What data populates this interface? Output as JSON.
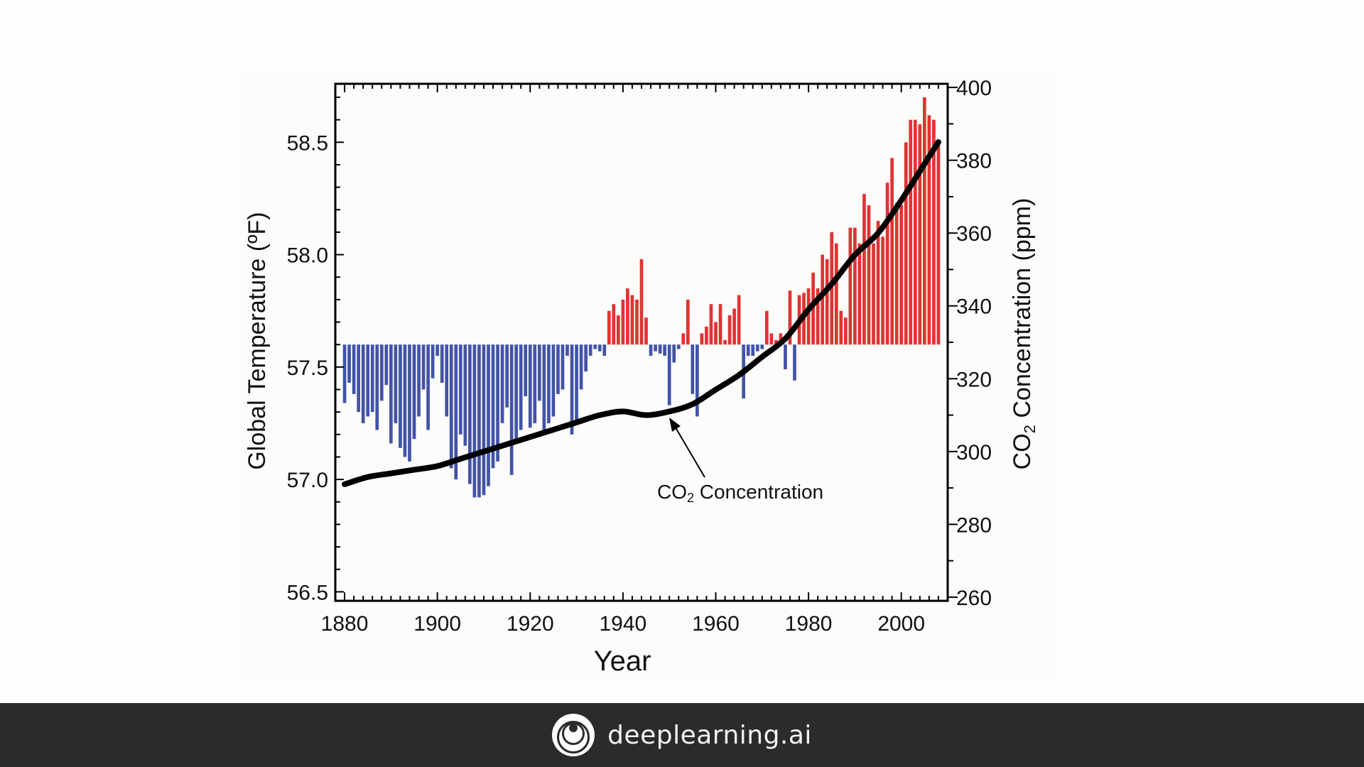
{
  "footer": {
    "brand": "deeplearning.ai",
    "logo_icon": "deeplearning-logo-icon"
  },
  "chart_data": {
    "type": "bar",
    "xlabel": "Year",
    "ylabel_left": "Global Temperature (ºF)",
    "ylabel_right_main": "CO",
    "ylabel_right_sub": "2",
    "ylabel_right_rest": " Concentration (ppm)",
    "annotation_main": "CO",
    "annotation_sub": "2",
    "annotation_rest": " Concentration",
    "baseline": 57.6,
    "x_range": [
      1878,
      2010
    ],
    "y_left_range": [
      56.46,
      58.76
    ],
    "y_right_range": [
      259,
      401
    ],
    "x_ticks": [
      1880,
      1900,
      1920,
      1940,
      1960,
      1980,
      2000
    ],
    "y_left_ticks": [
      "56.5",
      "57.0",
      "57.5",
      "58.0",
      "58.5"
    ],
    "y_right_ticks": [
      260,
      280,
      300,
      320,
      340,
      360,
      380,
      400
    ],
    "colors": {
      "above": "#e03333",
      "below": "#4353a6",
      "co2_line": "#000000"
    },
    "temperature_series": {
      "name": "Global Temperature",
      "years": [
        1880,
        1881,
        1882,
        1883,
        1884,
        1885,
        1886,
        1887,
        1888,
        1889,
        1890,
        1891,
        1892,
        1893,
        1894,
        1895,
        1896,
        1897,
        1898,
        1899,
        1900,
        1901,
        1902,
        1903,
        1904,
        1905,
        1906,
        1907,
        1908,
        1909,
        1910,
        1911,
        1912,
        1913,
        1914,
        1915,
        1916,
        1917,
        1918,
        1919,
        1920,
        1921,
        1922,
        1923,
        1924,
        1925,
        1926,
        1927,
        1928,
        1929,
        1930,
        1931,
        1932,
        1933,
        1934,
        1935,
        1936,
        1937,
        1938,
        1939,
        1940,
        1941,
        1942,
        1943,
        1944,
        1945,
        1946,
        1947,
        1948,
        1949,
        1950,
        1951,
        1952,
        1953,
        1954,
        1955,
        1956,
        1957,
        1958,
        1959,
        1960,
        1961,
        1962,
        1963,
        1964,
        1965,
        1966,
        1967,
        1968,
        1969,
        1970,
        1971,
        1972,
        1973,
        1974,
        1975,
        1976,
        1977,
        1978,
        1979,
        1980,
        1981,
        1982,
        1983,
        1984,
        1985,
        1986,
        1987,
        1988,
        1989,
        1990,
        1991,
        1992,
        1993,
        1994,
        1995,
        1996,
        1997,
        1998,
        1999,
        2000,
        2001,
        2002,
        2003,
        2004,
        2005,
        2006,
        2007,
        2008
      ],
      "values": [
        57.34,
        57.43,
        57.38,
        57.3,
        57.25,
        57.28,
        57.3,
        57.22,
        57.35,
        57.42,
        57.16,
        57.25,
        57.14,
        57.1,
        57.08,
        57.18,
        57.28,
        57.4,
        57.22,
        57.45,
        57.55,
        57.43,
        57.28,
        57.05,
        57.0,
        57.2,
        57.15,
        56.98,
        56.92,
        56.92,
        56.93,
        56.97,
        57.05,
        57.08,
        57.25,
        57.32,
        57.02,
        57.18,
        57.22,
        57.37,
        57.23,
        57.25,
        57.35,
        57.22,
        57.25,
        57.28,
        57.38,
        57.4,
        57.55,
        57.2,
        57.25,
        57.4,
        57.48,
        57.55,
        57.58,
        57.57,
        57.55,
        57.75,
        57.78,
        57.73,
        57.8,
        57.85,
        57.82,
        57.8,
        57.98,
        57.72,
        57.55,
        57.57,
        57.56,
        57.55,
        57.33,
        57.52,
        57.58,
        57.65,
        57.8,
        57.38,
        57.28,
        57.65,
        57.68,
        57.78,
        57.7,
        57.78,
        57.62,
        57.73,
        57.76,
        57.82,
        57.36,
        57.55,
        57.55,
        57.57,
        57.58,
        57.75,
        57.65,
        57.62,
        57.65,
        57.49,
        57.84,
        57.44,
        57.82,
        57.83,
        57.85,
        57.92,
        57.85,
        58.0,
        57.98,
        58.1,
        58.05,
        57.75,
        57.72,
        58.12,
        58.12,
        58.05,
        58.27,
        58.22,
        58.05,
        58.15,
        58.08,
        58.32,
        58.43,
        58.23,
        58.22,
        58.5,
        58.6,
        58.6,
        58.58,
        58.7,
        58.62,
        58.6,
        58.5
      ]
    },
    "co2_series": {
      "name": "CO2 Concentration",
      "points": [
        [
          1880,
          291
        ],
        [
          1885,
          293
        ],
        [
          1890,
          294
        ],
        [
          1895,
          295
        ],
        [
          1900,
          296
        ],
        [
          1905,
          298
        ],
        [
          1910,
          300
        ],
        [
          1915,
          302
        ],
        [
          1920,
          304
        ],
        [
          1925,
          306
        ],
        [
          1930,
          308
        ],
        [
          1935,
          310
        ],
        [
          1940,
          311
        ],
        [
          1945,
          310
        ],
        [
          1950,
          311
        ],
        [
          1955,
          313
        ],
        [
          1960,
          317
        ],
        [
          1965,
          321
        ],
        [
          1970,
          326
        ],
        [
          1975,
          331
        ],
        [
          1980,
          339
        ],
        [
          1985,
          346
        ],
        [
          1990,
          354
        ],
        [
          1995,
          360
        ],
        [
          2000,
          369
        ],
        [
          2005,
          379
        ],
        [
          2008,
          385
        ]
      ]
    }
  }
}
